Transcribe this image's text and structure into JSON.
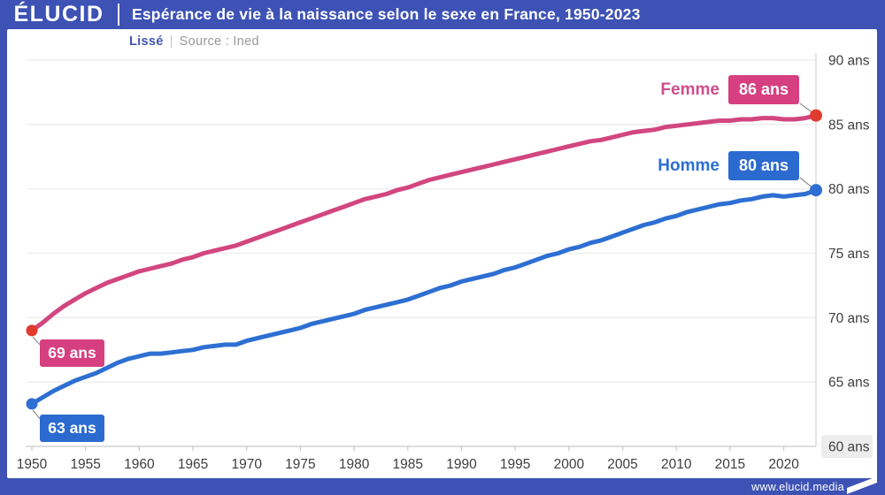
{
  "header": {
    "logo": "ÉLUCID",
    "title": "Espérance de vie à la naissance selon le sexe en France, 1950-2023"
  },
  "subtitle": {
    "smoothing": "Lissé",
    "separator": "|",
    "source": "Source : Ined"
  },
  "footer": {
    "site": "www.elucid.media"
  },
  "colors": {
    "frame": "#3d52b4",
    "femme_line": "#d2467f",
    "femme_badge": "#d63f80",
    "femme_text": "#ce4e8c",
    "femme_dot": "#e13b2d",
    "homme_line": "#2d6fd2",
    "homme_badge": "#2b6bd0",
    "homme_text": "#2d6fd2",
    "grid": "#ececec",
    "axis": "#d3d3d3",
    "axis_bottom": "#c9c9c9",
    "tick_text": "#3e3e3e",
    "connector": "#8f8f8f",
    "y60_badge_bg": "#ededed"
  },
  "chart_data": {
    "type": "line",
    "title": "Espérance de vie à la naissance selon le sexe en France, 1950-2023",
    "xlabel": "",
    "ylabel": "ans",
    "x_start": 1950,
    "x_end": 2023,
    "ylim": [
      60,
      90
    ],
    "grid": "horizontal",
    "legend_position": "end-of-line",
    "x_ticks": [
      1950,
      1955,
      1960,
      1965,
      1970,
      1975,
      1980,
      1985,
      1990,
      1995,
      2000,
      2005,
      2010,
      2015,
      2020
    ],
    "y_ticks": [
      {
        "value": 90,
        "label": "90 ans",
        "highlight": false
      },
      {
        "value": 85,
        "label": "85 ans",
        "highlight": false
      },
      {
        "value": 80,
        "label": "80 ans",
        "highlight": false
      },
      {
        "value": 75,
        "label": "75 ans",
        "highlight": false
      },
      {
        "value": 70,
        "label": "70 ans",
        "highlight": false
      },
      {
        "value": 65,
        "label": "65 ans",
        "highlight": false
      },
      {
        "value": 60,
        "label": "60 ans",
        "highlight": true
      }
    ],
    "series": [
      {
        "name": "Femme",
        "start_label": "69 ans",
        "end_label": "86 ans",
        "line_color": "#d2467f",
        "dot_color": "#e13b2d",
        "values": [
          69.0,
          69.6,
          70.3,
          70.9,
          71.4,
          71.9,
          72.3,
          72.7,
          73.0,
          73.3,
          73.6,
          73.8,
          74.0,
          74.2,
          74.5,
          74.7,
          75.0,
          75.2,
          75.4,
          75.6,
          75.9,
          76.2,
          76.5,
          76.8,
          77.1,
          77.4,
          77.7,
          78.0,
          78.3,
          78.6,
          78.9,
          79.2,
          79.4,
          79.6,
          79.9,
          80.1,
          80.4,
          80.7,
          80.9,
          81.1,
          81.3,
          81.5,
          81.7,
          81.9,
          82.1,
          82.3,
          82.5,
          82.7,
          82.9,
          83.1,
          83.3,
          83.5,
          83.7,
          83.8,
          84.0,
          84.2,
          84.4,
          84.5,
          84.6,
          84.8,
          84.9,
          85.0,
          85.1,
          85.2,
          85.3,
          85.3,
          85.4,
          85.4,
          85.5,
          85.5,
          85.4,
          85.4,
          85.5,
          85.7
        ]
      },
      {
        "name": "Homme",
        "start_label": "63 ans",
        "end_label": "80 ans",
        "line_color": "#2d6fd2",
        "dot_color": "#2d6fd2",
        "values": [
          63.3,
          63.8,
          64.3,
          64.7,
          65.1,
          65.4,
          65.7,
          66.1,
          66.5,
          66.8,
          67.0,
          67.2,
          67.2,
          67.3,
          67.4,
          67.5,
          67.7,
          67.8,
          67.9,
          67.9,
          68.2,
          68.4,
          68.6,
          68.8,
          69.0,
          69.2,
          69.5,
          69.7,
          69.9,
          70.1,
          70.3,
          70.6,
          70.8,
          71.0,
          71.2,
          71.4,
          71.7,
          72.0,
          72.3,
          72.5,
          72.8,
          73.0,
          73.2,
          73.4,
          73.7,
          73.9,
          74.2,
          74.5,
          74.8,
          75.0,
          75.3,
          75.5,
          75.8,
          76.0,
          76.3,
          76.6,
          76.9,
          77.2,
          77.4,
          77.7,
          77.9,
          78.2,
          78.4,
          78.6,
          78.8,
          78.9,
          79.1,
          79.2,
          79.4,
          79.5,
          79.4,
          79.5,
          79.6,
          79.9
        ]
      }
    ]
  }
}
